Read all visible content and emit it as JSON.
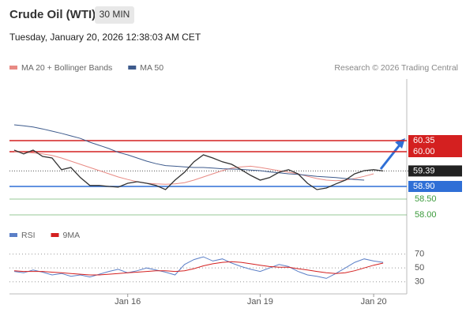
{
  "header": {
    "title": "Crude Oil (WTI)",
    "timeframe": "30 MIN",
    "date": "Tuesday, January 20, 2026 12:38:03 AM CET",
    "credit": "Research © 2026 Trading Central"
  },
  "chart_data": [
    {
      "type": "line",
      "categories": [
        null,
        null,
        null,
        null,
        null,
        null,
        null,
        null,
        null,
        null,
        null,
        null,
        "Jan 16",
        null,
        null,
        null,
        null,
        null,
        null,
        null,
        null,
        null,
        null,
        null,
        null,
        null,
        "Jan 19",
        null,
        null,
        null,
        null,
        null,
        null,
        null,
        null,
        null,
        null,
        null,
        "Jan 20",
        null,
        null,
        null
      ],
      "values": [
        60.05,
        59.93,
        60.05,
        59.85,
        59.8,
        59.43,
        59.5,
        59.18,
        58.93,
        58.93,
        58.9,
        58.88,
        59.0,
        59.05,
        59.0,
        58.93,
        58.8,
        59.1,
        59.35,
        59.68,
        59.9,
        59.8,
        59.68,
        59.6,
        59.43,
        59.25,
        59.1,
        59.18,
        59.35,
        59.43,
        59.3,
        59.0,
        58.8,
        58.85,
        58.98,
        59.1,
        59.3,
        59.4,
        59.43,
        59.39,
        null,
        null
      ],
      "color": "#333333",
      "series": [
        {
          "name": "MA 20 + Bollinger Bands",
          "color": "#e88a84",
          "values": [
            60.0,
            59.98,
            59.96,
            59.93,
            59.88,
            59.8,
            59.7,
            59.6,
            59.5,
            59.4,
            59.3,
            59.2,
            59.12,
            59.05,
            59.0,
            58.98,
            58.97,
            58.98,
            59.02,
            59.1,
            59.2,
            59.3,
            59.4,
            59.48,
            59.52,
            59.54,
            59.5,
            59.45,
            59.4,
            59.35,
            59.3,
            59.22,
            59.15,
            59.1,
            59.08,
            59.1,
            59.15,
            59.22,
            59.3,
            null,
            null,
            null
          ]
        },
        {
          "name": "MA 50",
          "color": "#3d5a8c",
          "values": [
            60.85,
            60.82,
            60.78,
            60.72,
            60.65,
            60.58,
            60.5,
            60.42,
            60.3,
            60.2,
            60.1,
            59.98,
            59.9,
            59.8,
            59.7,
            59.62,
            59.56,
            59.54,
            59.52,
            59.5,
            59.5,
            59.48,
            59.46,
            59.45,
            59.44,
            59.42,
            59.4,
            59.36,
            59.33,
            59.3,
            59.28,
            59.25,
            59.22,
            59.2,
            59.18,
            59.15,
            59.12,
            59.1,
            null,
            null,
            null,
            null
          ]
        }
      ],
      "ylim": [
        57.7,
        62.3
      ],
      "levels": [
        {
          "value": 60.35,
          "label": "60.35",
          "color": "#d42020",
          "style": "box"
        },
        {
          "value": 60.0,
          "label": "60.00",
          "color": "#d42020",
          "style": "box"
        },
        {
          "value": 59.39,
          "label": "59.39",
          "color": "#222222",
          "style": "box"
        },
        {
          "value": 58.9,
          "label": "58.90",
          "color": "#2f6fd6",
          "style": "box"
        },
        {
          "value": 58.5,
          "label": "58.50",
          "color": "#3a9a3a",
          "style": "text"
        },
        {
          "value": 58.0,
          "label": "58.00",
          "color": "#3a9a3a",
          "style": "text"
        }
      ]
    },
    {
      "type": "line",
      "categories": [
        null,
        null,
        null,
        null,
        null,
        null,
        null,
        null,
        null,
        null,
        null,
        null,
        "Jan 16",
        null,
        null,
        null,
        null,
        null,
        null,
        null,
        null,
        null,
        null,
        null,
        null,
        null,
        "Jan 19",
        null,
        null,
        null,
        null,
        null,
        null,
        null,
        null,
        null,
        null,
        null,
        "Jan 20",
        null,
        null,
        null
      ],
      "series": [
        {
          "name": "RSI",
          "color": "#5b7fc7",
          "values": [
            45,
            43,
            47,
            44,
            40,
            42,
            38,
            40,
            37,
            41,
            45,
            48,
            43,
            46,
            50,
            47,
            44,
            40,
            55,
            62,
            66,
            60,
            63,
            57,
            52,
            48,
            45,
            50,
            55,
            52,
            45,
            40,
            38,
            35,
            42,
            50,
            58,
            63,
            60,
            58,
            null,
            null
          ]
        },
        {
          "name": "9MA",
          "color": "#d42020",
          "values": [
            46,
            45,
            45,
            45,
            44,
            43,
            42,
            41,
            40,
            40,
            41,
            42,
            43,
            44,
            45,
            46,
            46,
            45,
            46,
            49,
            53,
            56,
            58,
            59,
            58,
            56,
            54,
            52,
            51,
            51,
            49,
            47,
            45,
            43,
            42,
            43,
            46,
            50,
            54,
            57,
            null,
            null
          ]
        }
      ],
      "ylim": [
        15,
        82
      ],
      "yticks": [
        30,
        50,
        70
      ]
    }
  ]
}
